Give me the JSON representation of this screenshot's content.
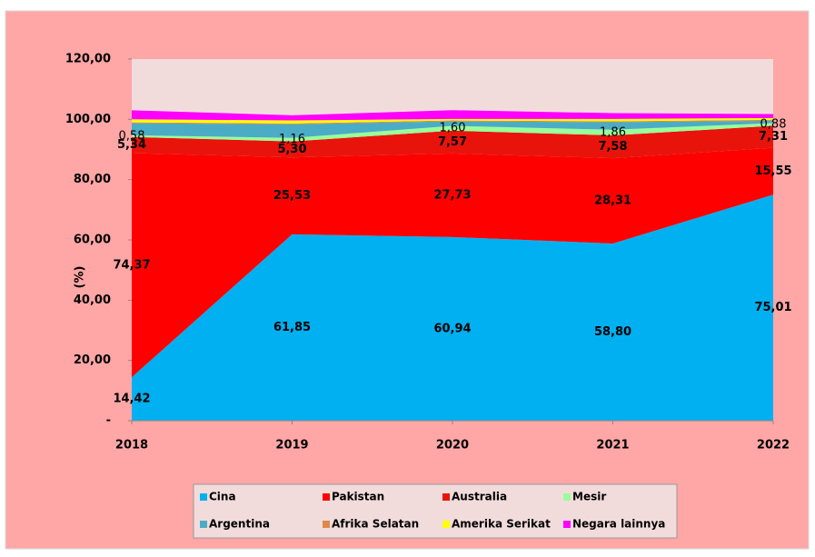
{
  "chart_data": {
    "type": "stacked_area",
    "y_label": "(%)",
    "categories": [
      "2018",
      "2019",
      "2020",
      "2021",
      "2022"
    ],
    "ylim": [
      0,
      120
    ],
    "yticks": [
      {
        "value": 0,
        "label": "-"
      },
      {
        "value": 20,
        "label": "20,00"
      },
      {
        "value": 40,
        "label": "40,00"
      },
      {
        "value": 60,
        "label": "60,00"
      },
      {
        "value": 80,
        "label": "80,00"
      },
      {
        "value": 100,
        "label": "100,00"
      },
      {
        "value": 120,
        "label": "120,00"
      }
    ],
    "legend": "bottom",
    "series": [
      {
        "name": "Cina",
        "color": "#00b0f0",
        "values": [
          14.42,
          61.85,
          60.94,
          58.8,
          75.01
        ],
        "value_labels": [
          "14,42",
          "61,85",
          "60,94",
          "58,80",
          "75,01"
        ]
      },
      {
        "name": "Pakistan",
        "color": "#ff0000",
        "values": [
          74.37,
          25.53,
          27.73,
          28.31,
          15.55
        ],
        "value_labels": [
          "74,37",
          "25,53",
          "27,73",
          "28,31",
          "15,55"
        ]
      },
      {
        "name": "Australia",
        "color": "#e8140c",
        "values": [
          5.34,
          5.3,
          7.57,
          7.58,
          7.31
        ],
        "value_labels": [
          "5,34",
          "5,30",
          "7,57",
          "7,58",
          "7,31"
        ]
      },
      {
        "name": "Mesir",
        "color": "#99ff99",
        "values": [
          0.58,
          1.16,
          1.6,
          1.86,
          0.88
        ],
        "value_labels": [
          "0,58",
          "1,16",
          "1,60",
          "1,86",
          "0,88"
        ]
      },
      {
        "name": "Argentina",
        "color": "#4bacc6",
        "values": [
          4.0,
          4.5,
          1.5,
          2.5,
          0.8
        ]
      },
      {
        "name": "Afrika Selatan",
        "color": "#e0884a",
        "values": [
          0.3,
          0.3,
          0.3,
          0.3,
          0.3
        ]
      },
      {
        "name": "Amerika Serikat",
        "color": "#ffff00",
        "values": [
          1.0,
          1.0,
          0.5,
          0.8,
          0.6
        ]
      },
      {
        "name": "Negara lainnya",
        "color": "#ff00ff",
        "values": [
          3.0,
          1.7,
          2.9,
          1.9,
          1.3
        ]
      }
    ]
  }
}
